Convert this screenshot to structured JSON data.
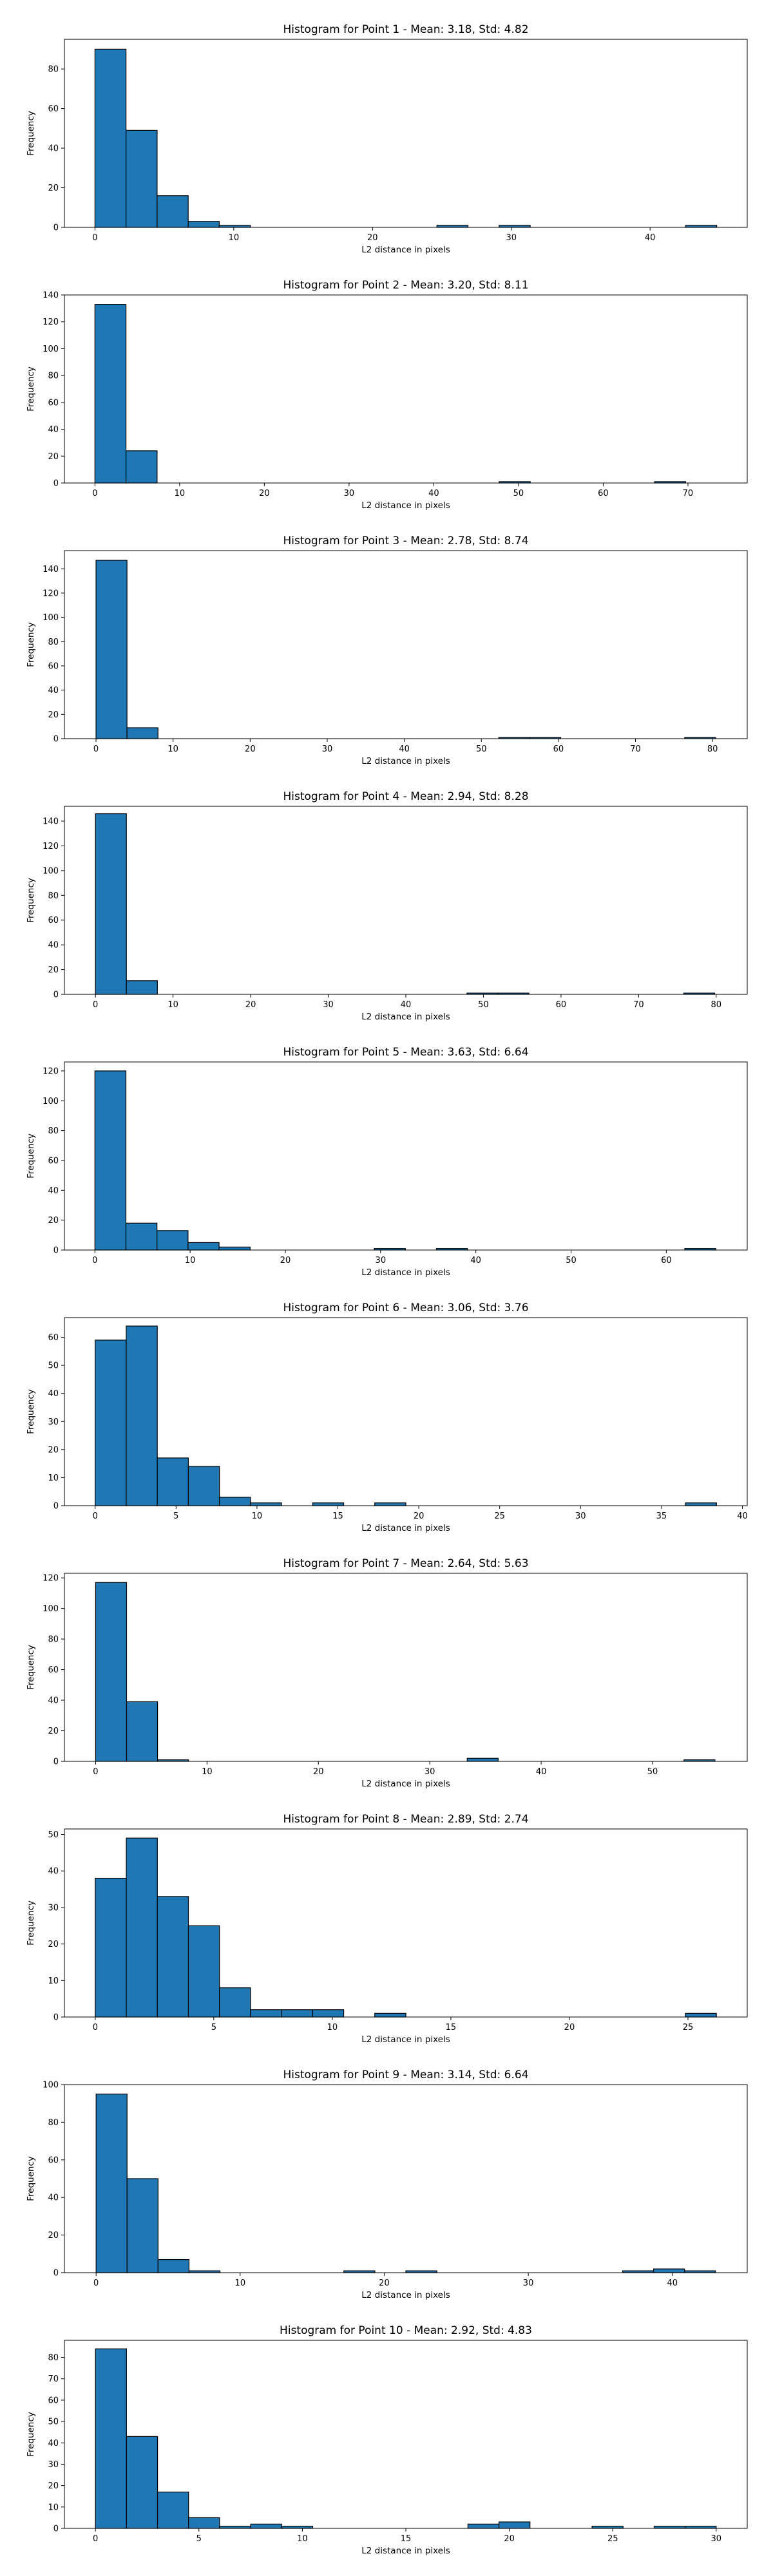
{
  "chart_data": [
    {
      "type": "bar",
      "title": "Histogram for Point 1 - Mean: 3.18, Std: 4.82",
      "xlabel": "L2 distance in pixels",
      "ylabel": "Frequency",
      "xlim": [
        -2.2,
        47
      ],
      "ylim": [
        0,
        95
      ],
      "x_ticks": [
        0,
        10,
        20,
        30,
        40
      ],
      "y_ticks": [
        0,
        20,
        40,
        60,
        80
      ],
      "bin_edges": [
        0,
        2.24,
        4.48,
        6.72,
        8.96,
        11.2,
        13.44,
        15.68,
        17.92,
        20.16,
        22.4,
        24.64,
        26.88,
        29.12,
        31.36,
        33.6,
        35.84,
        38.08,
        40.32,
        42.56,
        44.8
      ],
      "values": [
        90,
        49,
        16,
        3,
        1,
        0,
        0,
        0,
        0,
        0,
        0,
        1,
        0,
        1,
        0,
        0,
        0,
        0,
        0,
        1
      ]
    },
    {
      "type": "bar",
      "title": "Histogram for Point 2 - Mean: 3.20, Std: 8.11",
      "xlabel": "L2 distance in pixels",
      "ylabel": "Frequency",
      "xlim": [
        -3.6,
        77
      ],
      "ylim": [
        0,
        140
      ],
      "x_ticks": [
        0,
        10,
        20,
        30,
        40,
        50,
        60,
        70
      ],
      "y_ticks": [
        0,
        20,
        40,
        60,
        80,
        100,
        120,
        140
      ],
      "bin_edges": [
        0,
        3.67,
        7.34,
        11.01,
        14.68,
        18.35,
        22.02,
        25.69,
        29.36,
        33.03,
        36.7,
        40.37,
        44.04,
        47.71,
        51.38,
        55.05,
        58.72,
        62.39,
        66.06,
        69.73,
        73.4
      ],
      "values": [
        133,
        24,
        0,
        0,
        0,
        0,
        0,
        0,
        0,
        0,
        0,
        0,
        0,
        1,
        0,
        0,
        0,
        0,
        1,
        0
      ]
    },
    {
      "type": "bar",
      "title": "Histogram for Point 3 - Mean: 2.78, Std: 8.74",
      "xlabel": "L2 distance in pixels",
      "ylabel": "Frequency",
      "xlim": [
        -4.1,
        84.5
      ],
      "ylim": [
        0,
        155
      ],
      "x_ticks": [
        0,
        10,
        20,
        30,
        40,
        50,
        60,
        70,
        80
      ],
      "y_ticks": [
        0,
        20,
        40,
        60,
        80,
        100,
        120,
        140
      ],
      "bin_edges": [
        0,
        4.02,
        8.04,
        12.06,
        16.08,
        20.1,
        24.12,
        28.14,
        32.16,
        36.18,
        40.2,
        44.22,
        48.24,
        52.26,
        56.28,
        60.3,
        64.32,
        68.34,
        72.36,
        76.38,
        80.4
      ],
      "values": [
        147,
        9,
        0,
        0,
        0,
        0,
        0,
        0,
        0,
        0,
        0,
        0,
        0,
        1,
        1,
        0,
        0,
        0,
        0,
        1
      ]
    },
    {
      "type": "bar",
      "title": "Histogram for Point 4 - Mean: 2.94, Std: 8.28",
      "xlabel": "L2 distance in pixels",
      "ylabel": "Frequency",
      "xlim": [
        -4.0,
        84.0
      ],
      "ylim": [
        0,
        152
      ],
      "x_ticks": [
        0,
        10,
        20,
        30,
        40,
        50,
        60,
        70,
        80
      ],
      "y_ticks": [
        0,
        20,
        40,
        60,
        80,
        100,
        120,
        140
      ],
      "bin_edges": [
        0,
        3.99,
        7.98,
        11.97,
        15.96,
        19.95,
        23.94,
        27.93,
        31.92,
        35.91,
        39.9,
        43.89,
        47.88,
        51.87,
        55.86,
        59.85,
        63.84,
        67.83,
        71.82,
        75.81,
        79.8
      ],
      "values": [
        146,
        11,
        0,
        0,
        0,
        0,
        0,
        0,
        0,
        0,
        0,
        0,
        1,
        1,
        0,
        0,
        0,
        0,
        0,
        1
      ]
    },
    {
      "type": "bar",
      "title": "Histogram for Point 5 - Mean: 3.63, Std: 6.64",
      "xlabel": "L2 distance in pixels",
      "ylabel": "Frequency",
      "xlim": [
        -3.2,
        68.5
      ],
      "ylim": [
        0,
        126
      ],
      "x_ticks": [
        0,
        10,
        20,
        30,
        40,
        50,
        60
      ],
      "y_ticks": [
        0,
        20,
        40,
        60,
        80,
        100,
        120
      ],
      "bin_edges": [
        0,
        3.26,
        6.52,
        9.78,
        13.04,
        16.3,
        19.56,
        22.82,
        26.08,
        29.34,
        32.6,
        35.86,
        39.12,
        42.38,
        45.64,
        48.9,
        52.16,
        55.42,
        58.68,
        61.94,
        65.2
      ],
      "values": [
        120,
        18,
        13,
        5,
        2,
        0,
        0,
        0,
        0,
        1,
        0,
        1,
        0,
        0,
        0,
        0,
        0,
        0,
        0,
        1
      ]
    },
    {
      "type": "bar",
      "title": "Histogram for Point 6 - Mean: 3.06, Std: 3.76",
      "xlabel": "L2 distance in pixels",
      "ylabel": "Frequency",
      "xlim": [
        -1.9,
        40.3
      ],
      "ylim": [
        0,
        67
      ],
      "x_ticks": [
        0,
        5,
        10,
        15,
        20,
        25,
        30,
        35,
        40
      ],
      "y_ticks": [
        0,
        10,
        20,
        30,
        40,
        50,
        60
      ],
      "bin_edges": [
        0,
        1.92,
        3.84,
        5.76,
        7.68,
        9.6,
        11.52,
        13.44,
        15.36,
        17.28,
        19.2,
        21.12,
        23.04,
        24.96,
        26.88,
        28.8,
        30.72,
        32.64,
        34.56,
        36.48,
        38.4
      ],
      "values": [
        59,
        64,
        17,
        14,
        3,
        1,
        0,
        1,
        0,
        1,
        0,
        0,
        0,
        0,
        0,
        0,
        0,
        0,
        0,
        1
      ]
    },
    {
      "type": "bar",
      "title": "Histogram for Point 7 - Mean: 2.64, Std: 5.63",
      "xlabel": "L2 distance in pixels",
      "ylabel": "Frequency",
      "xlim": [
        -2.8,
        58.5
      ],
      "ylim": [
        0,
        123
      ],
      "x_ticks": [
        0,
        10,
        20,
        30,
        40,
        50
      ],
      "y_ticks": [
        0,
        20,
        40,
        60,
        80,
        100,
        120
      ],
      "bin_edges": [
        0,
        2.78,
        5.56,
        8.34,
        11.12,
        13.9,
        16.68,
        19.46,
        22.24,
        25.02,
        27.8,
        30.58,
        33.36,
        36.14,
        38.92,
        41.7,
        44.48,
        47.26,
        50.04,
        52.82,
        55.6
      ],
      "values": [
        117,
        39,
        1,
        0,
        0,
        0,
        0,
        0,
        0,
        0,
        0,
        0,
        2,
        0,
        0,
        0,
        0,
        0,
        0,
        1
      ]
    },
    {
      "type": "bar",
      "title": "Histogram for Point 8 - Mean: 2.89, Std: 2.74",
      "xlabel": "L2 distance in pixels",
      "ylabel": "Frequency",
      "xlim": [
        -1.3,
        27.5
      ],
      "ylim": [
        0,
        51.5
      ],
      "x_ticks": [
        0,
        5,
        10,
        15,
        20,
        25
      ],
      "y_ticks": [
        0,
        10,
        20,
        30,
        40,
        50
      ],
      "bin_edges": [
        0,
        1.31,
        2.62,
        3.93,
        5.24,
        6.55,
        7.86,
        9.17,
        10.48,
        11.79,
        13.1,
        14.41,
        15.72,
        17.03,
        18.34,
        19.65,
        20.96,
        22.27,
        23.58,
        24.89,
        26.2
      ],
      "values": [
        38,
        49,
        33,
        25,
        8,
        2,
        2,
        2,
        0,
        1,
        0,
        0,
        0,
        0,
        0,
        0,
        0,
        0,
        0,
        1
      ]
    },
    {
      "type": "bar",
      "title": "Histogram for Point 9 - Mean: 3.14, Std: 6.64",
      "xlabel": "L2 distance in pixels",
      "ylabel": "Frequency",
      "xlim": [
        -2.2,
        45.2
      ],
      "ylim": [
        0,
        100
      ],
      "x_ticks": [
        0,
        10,
        20,
        30,
        40
      ],
      "y_ticks": [
        0,
        20,
        40,
        60,
        80,
        100
      ],
      "bin_edges": [
        0,
        2.15,
        4.3,
        6.45,
        8.6,
        10.75,
        12.9,
        15.05,
        17.2,
        19.35,
        21.5,
        23.65,
        25.8,
        27.95,
        30.1,
        32.25,
        34.4,
        36.55,
        38.7,
        40.85,
        43.0
      ],
      "values": [
        95,
        50,
        7,
        1,
        0,
        0,
        0,
        0,
        1,
        0,
        1,
        0,
        0,
        0,
        0,
        0,
        0,
        1,
        2,
        1
      ]
    },
    {
      "type": "bar",
      "title": "Histogram for Point 10 - Mean: 2.92, Std: 4.83",
      "xlabel": "L2 distance in pixels",
      "ylabel": "Frequency",
      "xlim": [
        -1.5,
        31.5
      ],
      "ylim": [
        0,
        88
      ],
      "x_ticks": [
        0,
        5,
        10,
        15,
        20,
        25,
        30
      ],
      "y_ticks": [
        0,
        10,
        20,
        30,
        40,
        50,
        60,
        70,
        80
      ],
      "bin_edges": [
        0,
        1.5,
        3.0,
        4.5,
        6.0,
        7.5,
        9.0,
        10.5,
        12.0,
        13.5,
        15.0,
        16.5,
        18.0,
        19.5,
        21.0,
        22.5,
        24.0,
        25.5,
        27.0,
        28.5,
        30.0
      ],
      "values": [
        84,
        43,
        17,
        5,
        1,
        2,
        1,
        0,
        0,
        0,
        0,
        0,
        2,
        3,
        0,
        0,
        1,
        0,
        1,
        1
      ]
    }
  ]
}
